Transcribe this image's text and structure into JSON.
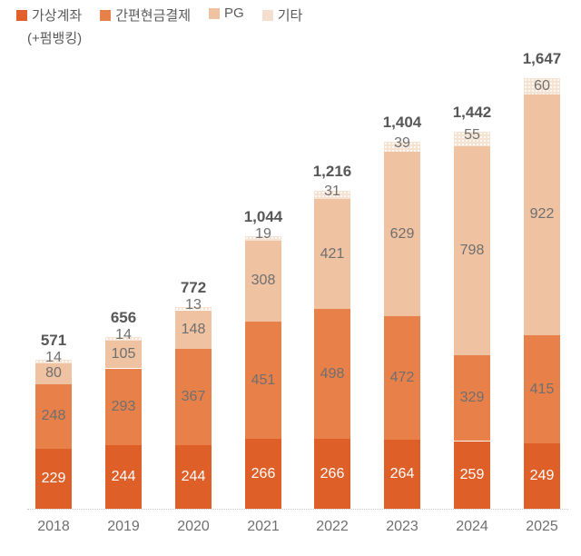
{
  "legend": {
    "items": [
      {
        "label": "가상계좌",
        "sublabel": "(+펌뱅킹)",
        "color": "#e2602b"
      },
      {
        "label": "간편현금결제",
        "color": "#e8804a"
      },
      {
        "label": "PG",
        "color": "#efc2a2"
      },
      {
        "label": "기타",
        "color": "#f3ded0"
      }
    ]
  },
  "chart_data": {
    "type": "bar",
    "stacked": true,
    "title": "",
    "xlabel": "",
    "ylabel": "",
    "categories": [
      "2018",
      "2019",
      "2020",
      "2021",
      "2022",
      "2023",
      "2024",
      "2025"
    ],
    "totals": [
      571,
      656,
      772,
      1044,
      1216,
      1404,
      1442,
      1647
    ],
    "total_labels": [
      "571",
      "656",
      "772",
      "1,044",
      "1,216",
      "1,404",
      "1,442",
      "1,647"
    ],
    "series": [
      {
        "name": "가상계좌 (+펌뱅킹)",
        "color": "#df5f29",
        "label_color": "#ffffff",
        "values": [
          229,
          244,
          244,
          266,
          266,
          264,
          259,
          249
        ]
      },
      {
        "name": "간편현금결제",
        "color": "#e8804a",
        "label_color": "#6f6f6f",
        "values": [
          248,
          293,
          367,
          451,
          498,
          472,
          329,
          415
        ]
      },
      {
        "name": "PG",
        "color": "#efc2a2",
        "label_color": "#6f6f6f",
        "values": [
          80,
          105,
          148,
          308,
          421,
          629,
          798,
          922
        ]
      },
      {
        "name": "기타",
        "color": "#f5e2d1",
        "label_color": "#6f6f6f",
        "dotted": true,
        "values": [
          14,
          14,
          13,
          19,
          31,
          39,
          55,
          60
        ]
      }
    ],
    "ylim": [
      0,
      1700
    ],
    "grid": false,
    "legend_position": "top-left",
    "baseline_style": "dotted"
  }
}
